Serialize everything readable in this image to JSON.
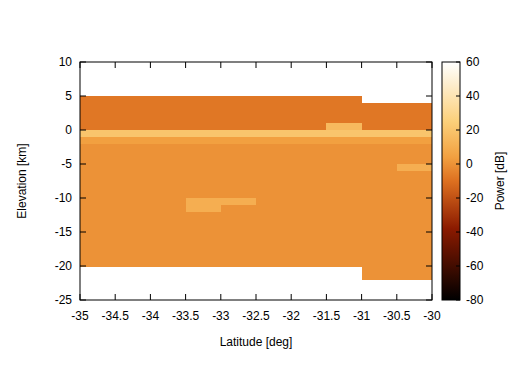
{
  "chart_data": {
    "type": "heatmap",
    "x_label": "Latitude [deg]",
    "y_label": "Elevation [km]",
    "xlim": [
      -35,
      -30
    ],
    "ylim": [
      -25,
      10
    ],
    "xticks": [
      -35,
      -34.5,
      -34,
      -33.5,
      -33,
      -32.5,
      -32,
      -31.5,
      -31,
      -30.5,
      -30
    ],
    "yticks": [
      10,
      5,
      0,
      -5,
      -10,
      -15,
      -20,
      -25
    ],
    "x_bins": [
      -35,
      -34.5,
      -34,
      -33.5,
      -33,
      -32.5,
      -32,
      -31.5,
      -31,
      -30.5,
      -30
    ],
    "y_bins": [
      6,
      5,
      4,
      3,
      2,
      1,
      0,
      -1,
      -2,
      -3,
      -4,
      -5,
      -6,
      -7,
      -8,
      -9,
      -10,
      -11,
      -12,
      -13,
      -14,
      -15,
      -16,
      -17,
      -18,
      -19,
      -20,
      -21,
      -22,
      -23
    ],
    "cells": [
      [
        null,
        null,
        null,
        null,
        null,
        null,
        null,
        null,
        null,
        null
      ],
      [
        -8,
        -8,
        -8,
        -8,
        -8,
        -8,
        -8,
        -8,
        null,
        null
      ],
      [
        -8,
        -8,
        -8,
        -8,
        -8,
        -8,
        -8,
        -8,
        -8,
        -8
      ],
      [
        -8,
        -8,
        -8,
        -8,
        -8,
        -8,
        -8,
        -8,
        -8,
        -8
      ],
      [
        -8,
        -8,
        -8,
        -8,
        -8,
        -8,
        -8,
        -8,
        -8,
        -8
      ],
      [
        -8,
        -8,
        -8,
        -8,
        -8,
        -8,
        -8,
        15,
        -8,
        -8
      ],
      [
        20,
        20,
        20,
        20,
        20,
        20,
        20,
        20,
        20,
        20
      ],
      [
        4,
        4,
        4,
        4,
        4,
        4,
        4,
        4,
        4,
        4
      ],
      [
        0,
        0,
        0,
        0,
        0,
        0,
        0,
        0,
        0,
        0
      ],
      [
        0,
        0,
        0,
        0,
        0,
        0,
        0,
        0,
        0,
        0
      ],
      [
        0,
        0,
        0,
        0,
        0,
        0,
        0,
        0,
        0,
        0
      ],
      [
        0,
        0,
        0,
        0,
        0,
        0,
        0,
        0,
        0,
        10
      ],
      [
        0,
        0,
        0,
        0,
        0,
        0,
        0,
        0,
        0,
        0
      ],
      [
        0,
        0,
        0,
        0,
        0,
        0,
        0,
        0,
        0,
        0
      ],
      [
        0,
        0,
        0,
        0,
        0,
        0,
        0,
        0,
        0,
        0
      ],
      [
        0,
        0,
        0,
        0,
        0,
        0,
        0,
        0,
        0,
        0
      ],
      [
        0,
        0,
        0,
        10,
        10,
        0,
        0,
        0,
        0,
        0
      ],
      [
        0,
        0,
        0,
        10,
        0,
        0,
        0,
        0,
        0,
        0
      ],
      [
        0,
        0,
        0,
        0,
        0,
        0,
        0,
        0,
        0,
        0
      ],
      [
        0,
        0,
        0,
        0,
        0,
        0,
        0,
        0,
        0,
        0
      ],
      [
        0,
        0,
        0,
        0,
        0,
        0,
        0,
        0,
        0,
        0
      ],
      [
        0,
        0,
        0,
        0,
        0,
        0,
        0,
        0,
        0,
        0
      ],
      [
        0,
        0,
        0,
        0,
        0,
        0,
        0,
        0,
        0,
        0
      ],
      [
        0,
        0,
        0,
        0,
        0,
        0,
        0,
        0,
        0,
        0
      ],
      [
        0,
        0,
        0,
        0,
        0,
        0,
        0,
        0,
        0,
        0
      ],
      [
        0,
        0,
        0,
        0,
        0,
        0,
        0,
        0,
        0,
        0
      ],
      [
        null,
        null,
        null,
        null,
        null,
        null,
        null,
        null,
        0,
        0
      ],
      [
        null,
        null,
        null,
        null,
        null,
        null,
        null,
        null,
        0,
        0
      ],
      [
        null,
        null,
        null,
        null,
        null,
        null,
        null,
        null,
        null,
        null
      ]
    ],
    "colorbar": {
      "label": "Power [dB]",
      "range": [
        -80,
        60
      ],
      "ticks": [
        60,
        40,
        20,
        0,
        -20,
        -40,
        -60,
        -80
      ]
    }
  }
}
